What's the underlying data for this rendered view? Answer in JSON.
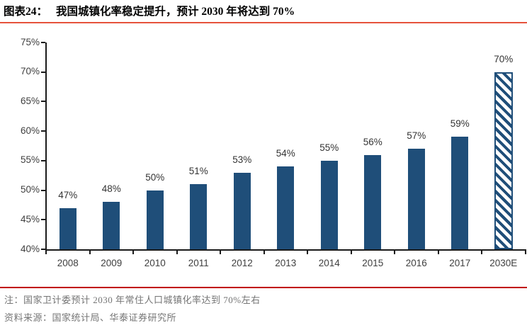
{
  "header": {
    "figure_label": "图表24：",
    "title": "我国城镇化率稳定提升，预计 2030 年将达到 70%"
  },
  "chart_data": {
    "type": "bar",
    "title": "我国城镇化率稳定提升，预计 2030 年将达到 70%",
    "categories": [
      "2008",
      "2009",
      "2010",
      "2011",
      "2012",
      "2013",
      "2014",
      "2015",
      "2016",
      "2017",
      "2030E"
    ],
    "values": [
      47,
      48,
      50,
      51,
      53,
      54,
      55,
      56,
      57,
      59,
      70
    ],
    "data_labels": [
      "47%",
      "48%",
      "50%",
      "51%",
      "53%",
      "54%",
      "55%",
      "56%",
      "57%",
      "59%",
      "70%"
    ],
    "xlabel": "",
    "ylabel": "",
    "ylim": [
      40,
      75
    ],
    "ytick_values": [
      40,
      45,
      50,
      55,
      60,
      65,
      70,
      75
    ],
    "ytick_labels": [
      "40%",
      "45%",
      "50%",
      "55%",
      "60%",
      "65%",
      "70%",
      "75%"
    ],
    "grid": false,
    "legend": "none",
    "bar_color": "#1F4E79",
    "forecast_category": "2030E",
    "forecast_style": "diagonal-hatch"
  },
  "footer": {
    "note": "注：国家卫计委预计 2030 年常住人口城镇化率达到 70%左右",
    "source": "资料来源：国家统计局、华泰证券研究所"
  },
  "colors": {
    "title_rule": "#E6533C",
    "footer_rule": "#C00000",
    "bar": "#1F4E79",
    "axis": "#1a1a1a",
    "tick_label_text": "#3f3f3f",
    "data_label_text": "#333333",
    "note_text": "#757575",
    "title_text": "#000000"
  }
}
